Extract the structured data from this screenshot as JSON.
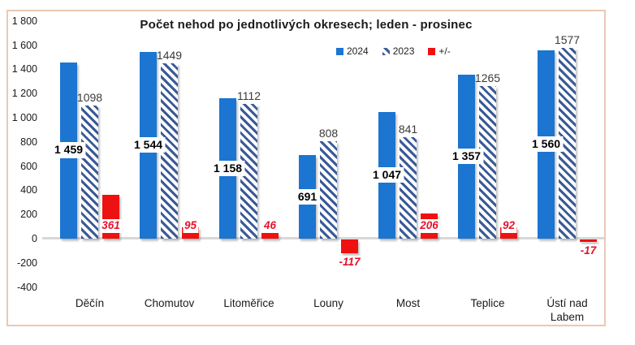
{
  "frame": {
    "border_color": "#eac9b2"
  },
  "chart_data": {
    "type": "bar",
    "title": "Počet nehod po jednotlivých okresech; leden - prosinec",
    "categories": [
      "Děčín",
      "Chomutov",
      "Litoměřice",
      "Louny",
      "Most",
      "Teplice",
      "Ústí nad\nLabem"
    ],
    "series": [
      {
        "name": "2024",
        "style": "solid",
        "color": "#1b75d1",
        "values": [
          1459,
          1544,
          1158,
          691,
          1047,
          1357,
          1560
        ],
        "labels": [
          "1 459",
          "1 544",
          "1 158",
          "691",
          "1 047",
          "1 357",
          "1 560"
        ]
      },
      {
        "name": "2023",
        "style": "hatched-diagonal",
        "color": "#3a5a96",
        "values": [
          1098,
          1449,
          1112,
          808,
          841,
          1265,
          1577
        ],
        "labels": [
          "1098",
          "1449",
          "1112",
          "808",
          "841",
          "1265",
          "1577"
        ]
      },
      {
        "name": "+/-",
        "style": "solid",
        "color": "#ee1111",
        "values": [
          361,
          95,
          46,
          -117,
          206,
          92,
          -17
        ],
        "labels": [
          "361",
          "95",
          "46",
          "-117",
          "206",
          "92",
          "-17"
        ]
      }
    ],
    "y_axis": {
      "min": -400,
      "max": 1800,
      "step": 200,
      "tick_labels": [
        "1 800",
        "1 600",
        "1 400",
        "1 200",
        "1 000",
        "800",
        "600",
        "400",
        "200",
        "0",
        "-200",
        "-400"
      ]
    },
    "legend": {
      "position": "top-center-right",
      "entries": [
        "2024",
        "2023",
        "+/-"
      ]
    },
    "grid": "none",
    "zero_line_color": "#d8d8d8"
  }
}
